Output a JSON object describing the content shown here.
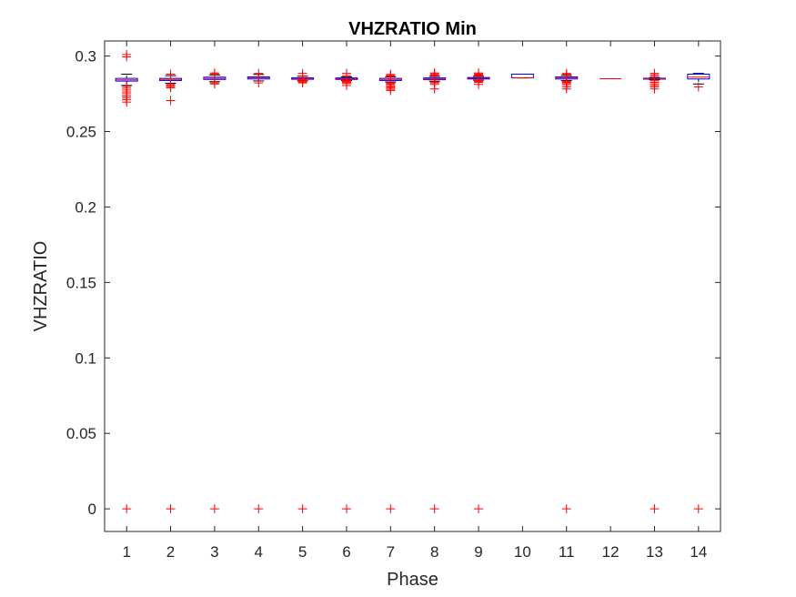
{
  "chart_data": {
    "type": "box",
    "title": "VHZRATIO Min",
    "xlabel": "Phase",
    "ylabel": "VHZRATIO",
    "categories": [
      "1",
      "2",
      "3",
      "4",
      "5",
      "6",
      "7",
      "8",
      "9",
      "10",
      "11",
      "12",
      "13",
      "14"
    ],
    "ylim": [
      -0.015,
      0.31
    ],
    "yticks": [
      0,
      0.05,
      0.1,
      0.15,
      0.2,
      0.25,
      0.3
    ],
    "ytick_labels": [
      "0",
      "0.05",
      "0.1",
      "0.15",
      "0.2",
      "0.25",
      "0.3"
    ],
    "grid": false,
    "colors": {
      "box": "#0000ff",
      "median": "#ff0000",
      "whisker": "#000000",
      "outlier": "#ff0000"
    },
    "boxes": [
      {
        "phase": "1",
        "q1": 0.2834,
        "median": 0.2842,
        "q3": 0.2852,
        "whisker_low": 0.2805,
        "whisker_high": 0.288,
        "outliers": [
          0,
          0.2695,
          0.271,
          0.2722,
          0.2735,
          0.275,
          0.2762,
          0.2775,
          0.2788,
          0.28,
          0.2995,
          0.301
        ]
      },
      {
        "phase": "2",
        "q1": 0.2838,
        "median": 0.2845,
        "q3": 0.2852,
        "whisker_low": 0.282,
        "whisker_high": 0.287,
        "outliers": [
          0,
          0.2705,
          0.279,
          0.2798,
          0.2805,
          0.2812,
          0.288
        ]
      },
      {
        "phase": "3",
        "q1": 0.2845,
        "median": 0.2852,
        "q3": 0.286,
        "whisker_low": 0.283,
        "whisker_high": 0.2875,
        "outliers": [
          0,
          0.2815,
          0.2822,
          0.2882,
          0.2888
        ]
      },
      {
        "phase": "4",
        "q1": 0.2848,
        "median": 0.2855,
        "q3": 0.2862,
        "whisker_low": 0.2835,
        "whisker_high": 0.2878,
        "outliers": [
          0,
          0.2822,
          0.2885
        ]
      },
      {
        "phase": "5",
        "q1": 0.2846,
        "median": 0.2851,
        "q3": 0.2856,
        "whisker_low": 0.2836,
        "whisker_high": 0.2866,
        "outliers": [
          0,
          0.2822,
          0.2828,
          0.2834,
          0.2839,
          0.2844,
          0.2868,
          0.2885
        ]
      },
      {
        "phase": "6",
        "q1": 0.2845,
        "median": 0.285,
        "q3": 0.2855,
        "whisker_low": 0.2838,
        "whisker_high": 0.2862,
        "outliers": [
          0,
          0.2805,
          0.2818,
          0.2825,
          0.2832,
          0.2836,
          0.284,
          0.287,
          0.2885
        ]
      },
      {
        "phase": "7",
        "q1": 0.2838,
        "median": 0.2845,
        "q3": 0.2852,
        "whisker_low": 0.2828,
        "whisker_high": 0.2862,
        "outliers": [
          0,
          0.2772,
          0.278,
          0.2788,
          0.2796,
          0.2804,
          0.2812,
          0.2818,
          0.2824,
          0.2866,
          0.2872,
          0.2878
        ]
      },
      {
        "phase": "8",
        "q1": 0.2843,
        "median": 0.2849,
        "q3": 0.2855,
        "whisker_low": 0.2833,
        "whisker_high": 0.2865,
        "outliers": [
          0,
          0.2782,
          0.2812,
          0.2822,
          0.2828,
          0.2869,
          0.2875,
          0.2882,
          0.2888
        ]
      },
      {
        "phase": "9",
        "q1": 0.2848,
        "median": 0.2853,
        "q3": 0.2858,
        "whisker_low": 0.284,
        "whisker_high": 0.2866,
        "outliers": [
          0,
          0.2812,
          0.2826,
          0.2832,
          0.2838,
          0.2868,
          0.2872,
          0.2876,
          0.2882,
          0.2888
        ]
      },
      {
        "phase": "10",
        "q1": 0.2855,
        "median": 0.2856,
        "q3": 0.288,
        "whisker_low": 0.2855,
        "whisker_high": 0.288,
        "outliers": []
      },
      {
        "phase": "11",
        "q1": 0.2848,
        "median": 0.2855,
        "q3": 0.2862,
        "whisker_low": 0.2838,
        "whisker_high": 0.2872,
        "outliers": [
          0,
          0.2782,
          0.2796,
          0.281,
          0.2818,
          0.2826,
          0.2832,
          0.2878,
          0.2885
        ]
      },
      {
        "phase": "12",
        "q1": 0.285,
        "median": 0.285,
        "q3": 0.285,
        "whisker_low": 0.285,
        "whisker_high": 0.285,
        "outliers": []
      },
      {
        "phase": "13",
        "q1": 0.2847,
        "median": 0.285,
        "q3": 0.2853,
        "whisker_low": 0.2843,
        "whisker_high": 0.2857,
        "outliers": [
          0,
          0.2782,
          0.2796,
          0.2806,
          0.2816,
          0.2826,
          0.2836,
          0.2866,
          0.2876,
          0.2885
        ]
      },
      {
        "phase": "14",
        "q1": 0.2848,
        "median": 0.286,
        "q3": 0.288,
        "whisker_low": 0.2815,
        "whisker_high": 0.2885,
        "outliers": [
          0,
          0.2795
        ]
      }
    ]
  }
}
